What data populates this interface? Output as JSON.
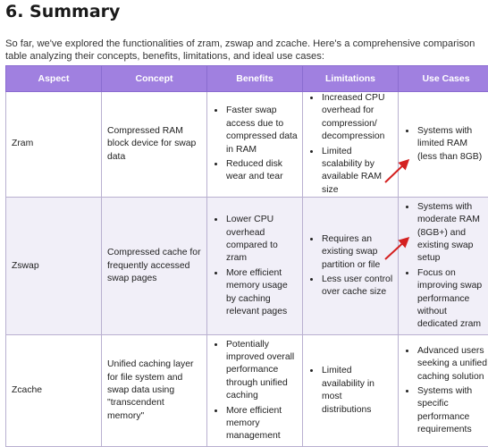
{
  "heading": "6. Summary",
  "intro": "So far, we've explored the functionalities of zram, zswap and zcache. Here's a comprehensive comparison table analyzing their concepts, benefits, limitations, and ideal use cases:",
  "table": {
    "headers": [
      "Aspect",
      "Concept",
      "Benefits",
      "Limitations",
      "Use Cases"
    ],
    "rows": [
      {
        "aspect": "Zram",
        "concept": "Compressed RAM block device for swap data",
        "benefits": [
          "Faster swap access due to compressed data in RAM",
          "Reduced disk wear and tear"
        ],
        "limitations": [
          "Increased CPU overhead for compression/ decompression",
          "Limited scalability by available RAM size"
        ],
        "use_cases": [
          "Systems with limited RAM (less than 8GB)"
        ]
      },
      {
        "aspect": "Zswap",
        "concept": "Compressed cache for frequently accessed swap pages",
        "benefits": [
          "Lower CPU overhead compared to zram",
          "More efficient memory usage by caching relevant pages"
        ],
        "limitations": [
          "Requires an existing swap partition or file",
          "Less user control over cache size"
        ],
        "use_cases": [
          "Systems with moderate RAM (8GB+) and existing swap setup",
          "Focus on improving swap performance without dedicated zram"
        ]
      },
      {
        "aspect": "Zcache",
        "concept": "Unified caching layer for file system and swap data using \"transcendent memory\"",
        "benefits": [
          "Potentially improved overall performance through unified caching",
          "More efficient memory management"
        ],
        "limitations": [
          "Limited availability in most distributions"
        ],
        "use_cases": [
          "Advanced users seeking a unified caching solution",
          "Systems with specific performance requirements"
        ]
      }
    ]
  },
  "annotation_color": "#d42020"
}
